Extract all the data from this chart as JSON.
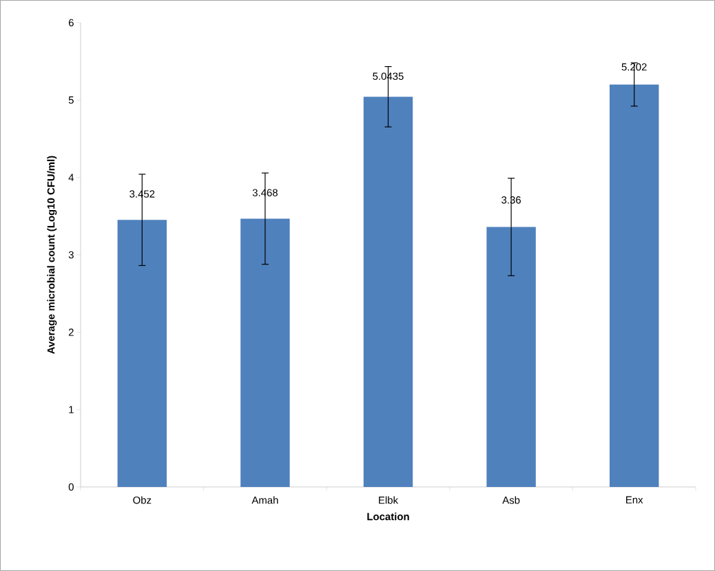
{
  "chart_data": {
    "type": "bar",
    "xlabel": "Location",
    "ylabel": "Average microbial count (Log10 CFU/ml)",
    "categories": [
      "Obz",
      "Amah",
      "Elbk",
      "Asb",
      "Enx"
    ],
    "values": [
      3.452,
      3.468,
      5.0435,
      3.36,
      5.202
    ],
    "errors": [
      0.59,
      0.59,
      0.39,
      0.63,
      0.28
    ],
    "color": "#4f81bd",
    "ylim": [
      0,
      6
    ],
    "yticks": [
      0,
      1,
      2,
      3,
      4,
      5,
      6
    ],
    "data_labels": true
  }
}
